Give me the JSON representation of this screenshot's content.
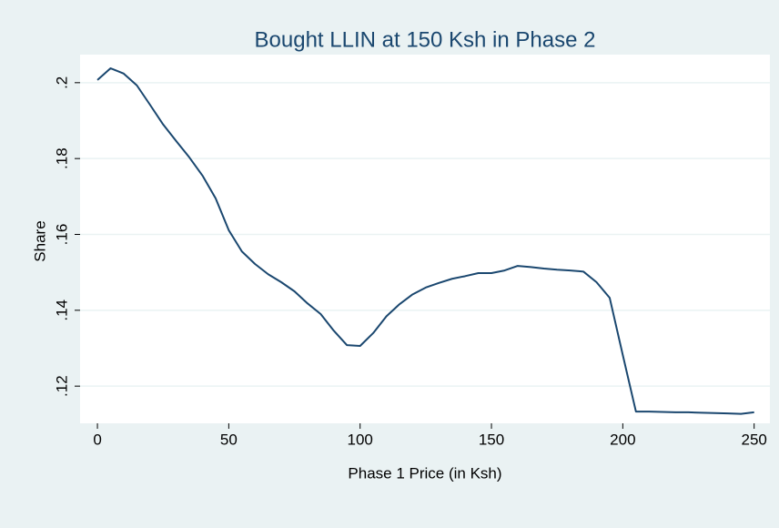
{
  "chart_data": {
    "type": "line",
    "title": "Bought LLIN at 150 Ksh in Phase 2",
    "x_label": "Phase 1 Price (in Ksh)",
    "y_label": "Share",
    "x": [
      0,
      5,
      10,
      15,
      20,
      25,
      30,
      35,
      40,
      45,
      50,
      55,
      60,
      65,
      70,
      75,
      80,
      85,
      90,
      95,
      100,
      105,
      110,
      115,
      120,
      125,
      130,
      135,
      140,
      145,
      150,
      155,
      160,
      165,
      170,
      175,
      180,
      185,
      190,
      195,
      200,
      205,
      210,
      215,
      220,
      225,
      230,
      235,
      240,
      245,
      250
    ],
    "series": [
      {
        "color": "#1a476f",
        "values": [
          0.2007,
          0.2038,
          0.2024,
          0.1993,
          0.1942,
          0.189,
          0.1846,
          0.1803,
          0.1755,
          0.1695,
          0.1611,
          0.1555,
          0.1522,
          0.1495,
          0.1474,
          0.145,
          0.1418,
          0.139,
          0.1346,
          0.1308,
          0.1306,
          0.134,
          0.1384,
          0.1416,
          0.1442,
          0.146,
          0.1472,
          0.1483,
          0.149,
          0.1498,
          0.1498,
          0.1505,
          0.1517,
          0.1514,
          0.151,
          0.1507,
          0.1505,
          0.1502,
          0.1474,
          0.1433,
          0.1282,
          0.1133,
          0.1133,
          0.1132,
          0.1131,
          0.1131,
          0.113,
          0.1129,
          0.1128,
          0.1127,
          0.1131
        ]
      }
    ],
    "xlim": [
      -6.6,
      256
    ],
    "ylim": [
      0.1102,
      0.2074
    ],
    "xticks": [
      0,
      50,
      100,
      150,
      200,
      250
    ],
    "yticks": [
      {
        "value": 0.12,
        "label": ".12"
      },
      {
        "value": 0.14,
        "label": ".14"
      },
      {
        "value": 0.16,
        "label": ".16"
      },
      {
        "value": 0.18,
        "label": ".18"
      },
      {
        "value": 0.2,
        "label": ".2"
      }
    ],
    "grid": true
  }
}
